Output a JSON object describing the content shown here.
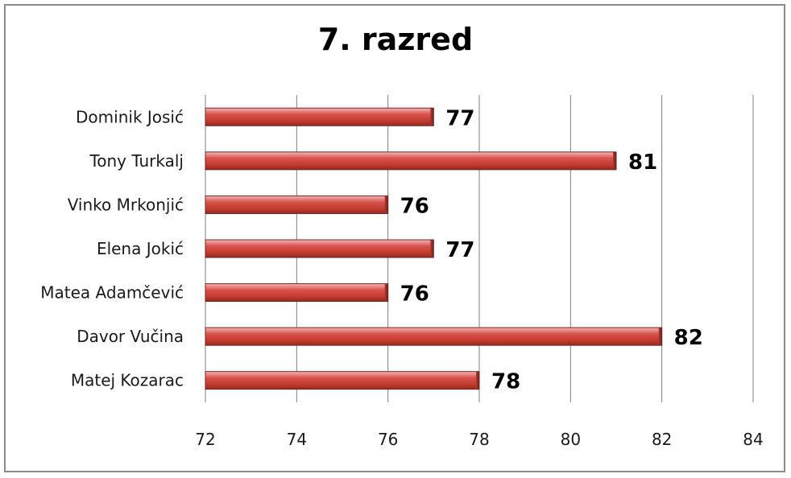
{
  "chart_data": {
    "type": "bar",
    "orientation": "horizontal",
    "title": "7. razred",
    "categories": [
      "Dominik Josić",
      "Tony Turkalj",
      "Vinko Mrkonjić",
      "Elena Jokić",
      "Matea Adamčević",
      "Davor Vučina",
      "Matej Kozarac"
    ],
    "values": [
      77,
      81,
      76,
      77,
      76,
      82,
      78
    ],
    "xlim": [
      72,
      84
    ],
    "xticks": [
      "72",
      "74",
      "76",
      "78",
      "80",
      "82",
      "84"
    ],
    "data_labels": [
      "77",
      "81",
      "76",
      "77",
      "76",
      "82",
      "78"
    ],
    "grid": "vertical",
    "legend": "none",
    "bar_color": "#c0504d"
  }
}
